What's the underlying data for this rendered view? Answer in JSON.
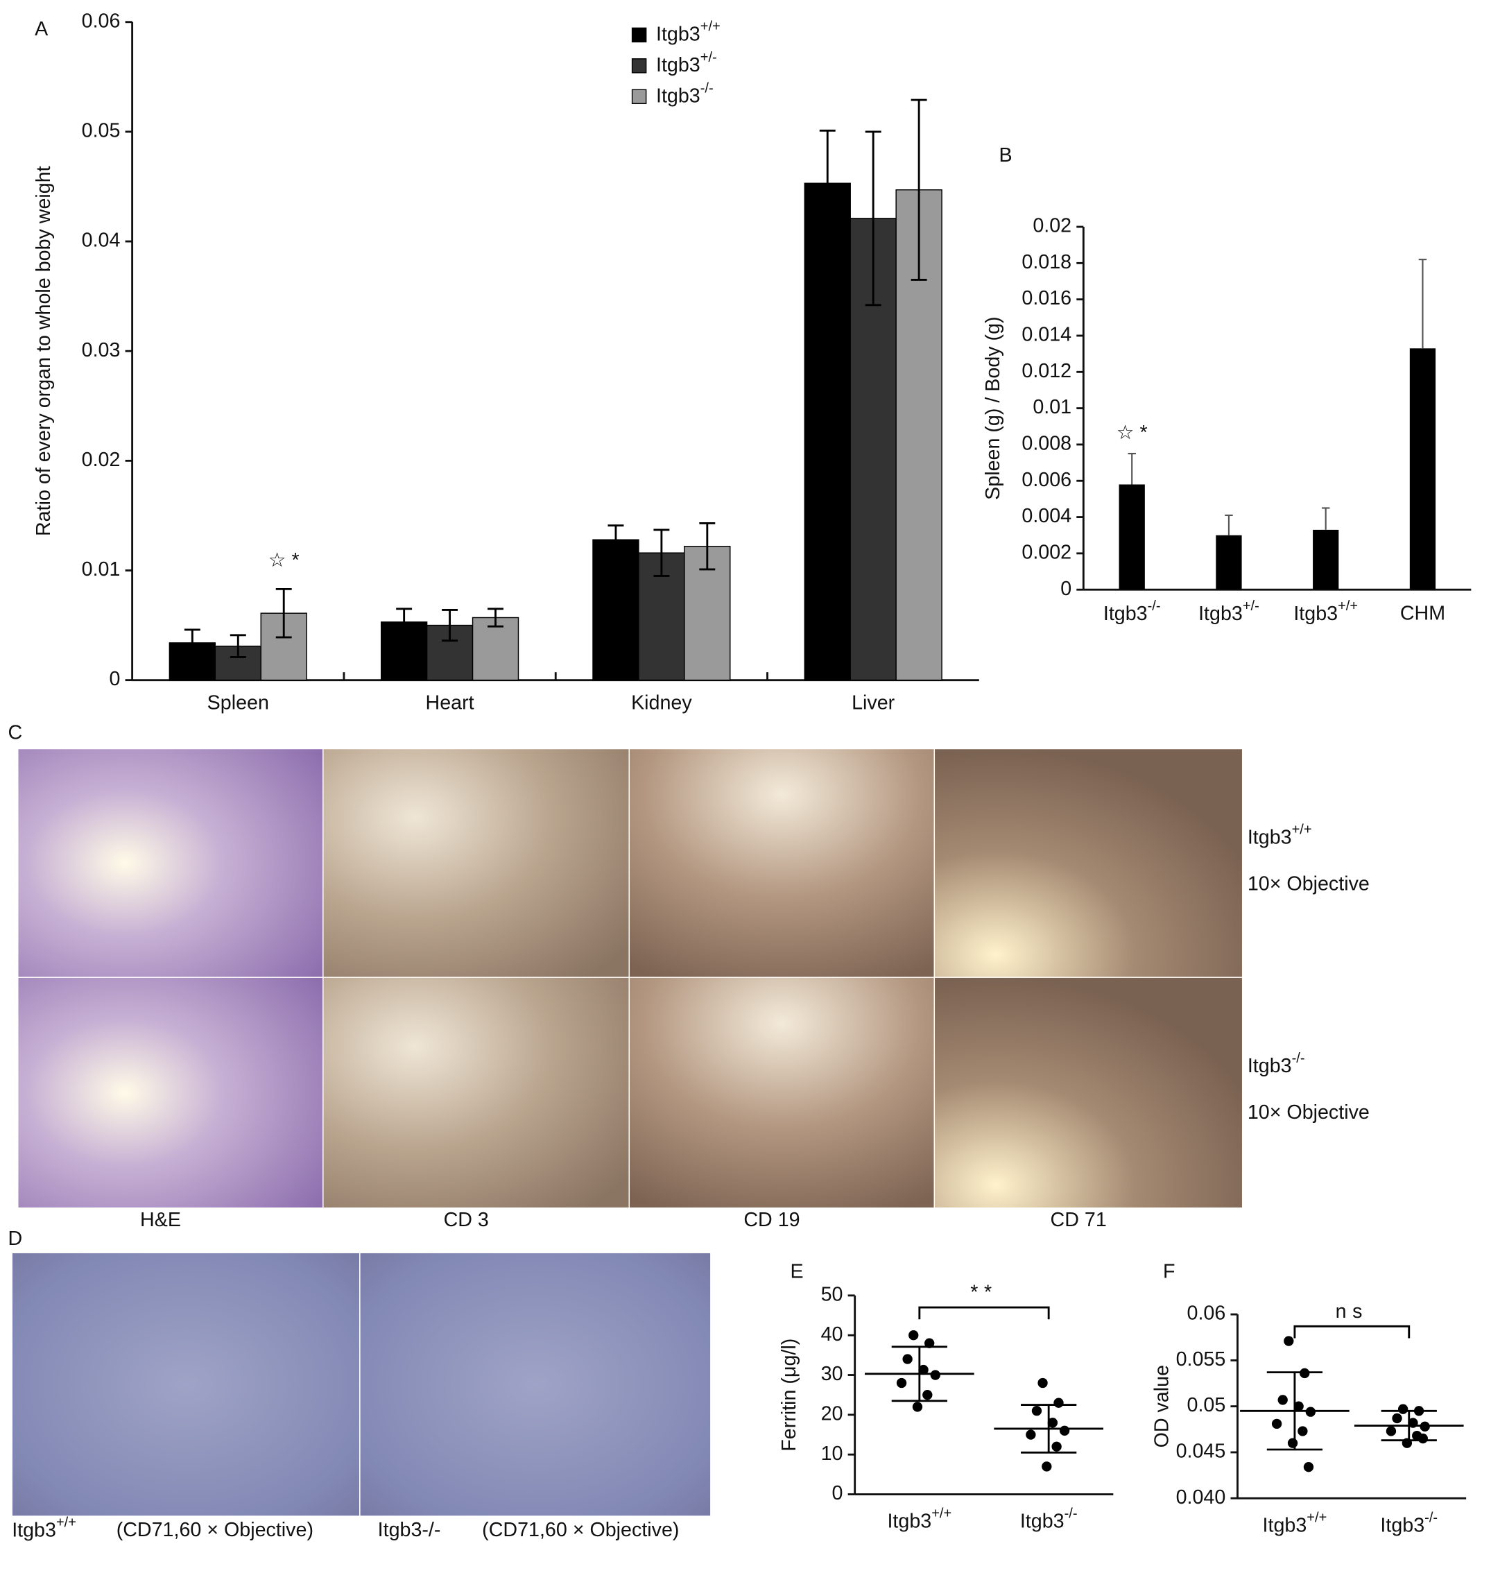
{
  "chart_data": [
    {
      "type": "grouped_bar",
      "panel_label": "A",
      "y_label": "Ratio of every organ to whole boby weight",
      "categories": [
        "Spleen",
        "Heart",
        "Kidney",
        "Liver"
      ],
      "series": [
        {
          "name": "Itgb3+/+",
          "color": "#000000",
          "values": [
            0.0034,
            0.0053,
            0.0128,
            0.0453
          ],
          "errors": [
            0.0012,
            0.0012,
            0.0013,
            0.0048
          ]
        },
        {
          "name": "Itgb3+/-",
          "color": "#333333",
          "values": [
            0.0031,
            0.005,
            0.0116,
            0.0421
          ],
          "errors": [
            0.001,
            0.0014,
            0.0021,
            0.0079
          ]
        },
        {
          "name": "Itgb3-/-",
          "color": "#9a9a9a",
          "values": [
            0.0061,
            0.0057,
            0.0122,
            0.0447
          ],
          "errors": [
            0.0022,
            0.0008,
            0.0021,
            0.0082
          ]
        }
      ],
      "annotation": "☆ *",
      "ylim": [
        0,
        0.06
      ],
      "yticks": [
        0,
        0.01,
        0.02,
        0.03,
        0.04,
        0.05,
        0.06
      ],
      "legend": "top-center"
    },
    {
      "type": "bar",
      "panel_label": "B",
      "y_label": "Spleen (g) / Body (g)",
      "categories": [
        "Itgb3-/-",
        "Itgb3+/-",
        "Itgb3+/+",
        "CHM"
      ],
      "values": [
        0.0058,
        0.003,
        0.0033,
        0.0133
      ],
      "errors": [
        0.0017,
        0.0011,
        0.0012,
        0.0049
      ],
      "color": "#000000",
      "annotation": "☆ *",
      "ylim": [
        0,
        0.02
      ],
      "yticks": [
        0,
        0.002,
        0.004,
        0.006,
        0.008,
        0.01,
        0.012,
        0.014,
        0.016,
        0.018,
        0.02
      ]
    },
    {
      "type": "dot",
      "panel_label": "E",
      "y_label": "Ferritin (μg/l)",
      "categories": [
        "Itgb3+/+",
        "Itgb3-/-"
      ],
      "groups": [
        {
          "values": [
            40,
            38,
            34,
            31.3,
            30,
            28,
            25,
            22
          ],
          "mean": 30.3,
          "sd": 6.8
        },
        {
          "values": [
            28,
            23,
            21,
            18,
            16,
            15,
            12,
            7
          ],
          "mean": 16.5,
          "sd": 6
        }
      ],
      "annotation": "**",
      "ylim": [
        0,
        50
      ],
      "yticks": [
        0,
        10,
        20,
        30,
        40,
        50
      ]
    },
    {
      "type": "dot",
      "panel_label": "F",
      "y_label": "OD value",
      "categories": [
        "Itgb3+/+",
        "Itgb3-/-"
      ],
      "groups": [
        {
          "values": [
            0.0571,
            0.0536,
            0.0507,
            0.05,
            0.0494,
            0.0481,
            0.0473,
            0.046,
            0.0434
          ],
          "mean": 0.0495,
          "sd": 0.0042
        },
        {
          "values": [
            0.0497,
            0.0495,
            0.0487,
            0.0482,
            0.0478,
            0.0473,
            0.0468,
            0.046,
            0.0465
          ],
          "mean": 0.0479,
          "sd": 0.0016
        }
      ],
      "annotation": "ns",
      "ylim": [
        0.04,
        0.06
      ],
      "yticks": [
        {
          "value": 0.04,
          "label": "0.040"
        },
        0.045,
        0.05,
        0.055,
        0.06
      ]
    }
  ],
  "panel_c": {
    "label": "C",
    "columns": [
      "H&E",
      "CD 3",
      "CD 19",
      "CD 71"
    ],
    "rows": [
      {
        "genotype": "Itgb3+/+",
        "objective": "10× Objective"
      },
      {
        "genotype": "Itgb3-/-",
        "objective": "10× Objective"
      }
    ]
  },
  "panel_d": {
    "label": "D",
    "captions": [
      {
        "genotype": "Itgb3+/+",
        "stain": "(CD71,60 × Objective)"
      },
      {
        "genotype": "Itgb3-/-",
        "stain": "(CD71,60 × Objective)"
      }
    ]
  }
}
